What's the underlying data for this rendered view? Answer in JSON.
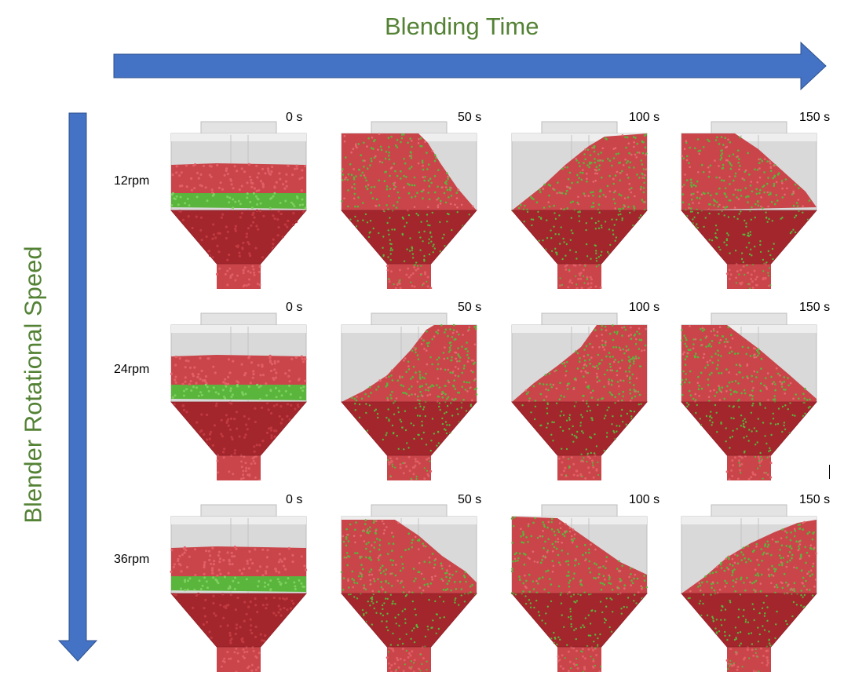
{
  "header": {
    "time_axis_title": "Blending Time",
    "speed_axis_title": "Blender Rotational Speed"
  },
  "colors": {
    "arrow": "#4472C4",
    "title": "#548235",
    "red_particles": "#c9454a",
    "dark_red_particles": "#a3262d",
    "green_particles": "#5ab53c",
    "vessel": "#d9d9d9"
  },
  "rows": [
    {
      "speed": "12rpm",
      "times": [
        "0 s",
        "50 s",
        "100 s",
        "150 s"
      ]
    },
    {
      "speed": "24rpm",
      "times": [
        "0 s",
        "50 s",
        "100 s",
        "150 s"
      ]
    },
    {
      "speed": "36rpm",
      "times": [
        "0 s",
        "50 s",
        "100 s",
        "150 s"
      ]
    }
  ]
}
